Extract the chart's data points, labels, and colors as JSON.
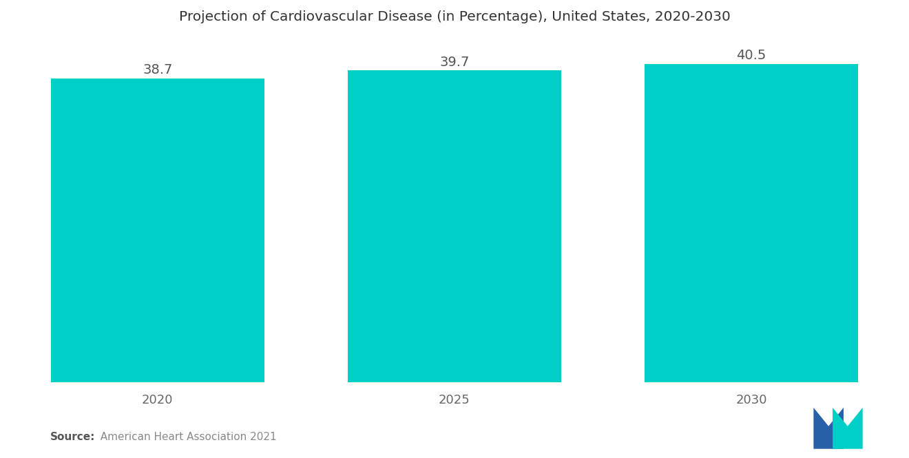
{
  "title": "Projection of Cardiovascular Disease (in Percentage), United States, 2020-2030",
  "categories": [
    "2020",
    "2025",
    "2030"
  ],
  "values": [
    38.7,
    39.7,
    40.5
  ],
  "bar_color": "#00CFC8",
  "bar_width": 0.72,
  "value_label_fontsize": 14,
  "title_fontsize": 14.5,
  "xlabel_fontsize": 13,
  "background_color": "#ffffff",
  "ylim": [
    0,
    43
  ],
  "source_bold": "Source:",
  "source_rest": "  American Heart Association 2021",
  "logo_blue": "#2860A8",
  "logo_teal": "#00CFC8"
}
